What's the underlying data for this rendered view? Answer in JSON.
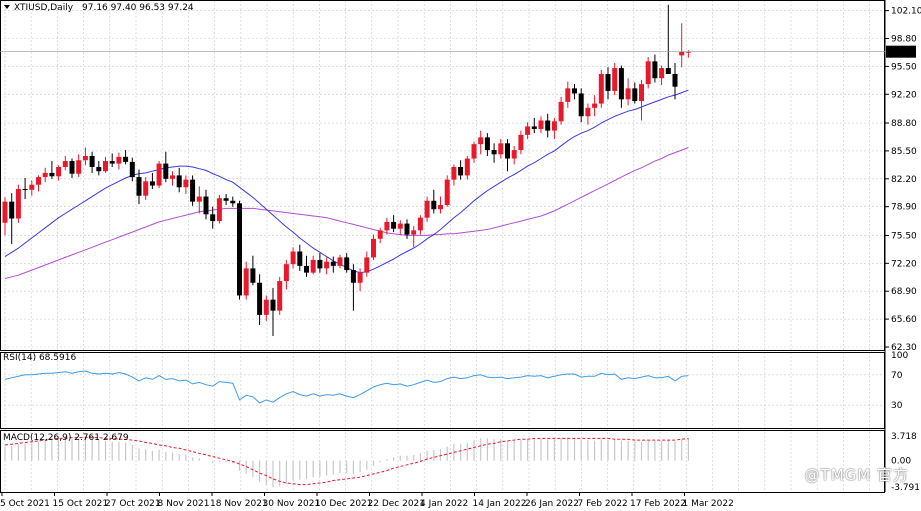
{
  "header": {
    "symbol_caption": "XTIUSD,Daily",
    "ohlc_caption": "97.16 97.40 96.53 97.24"
  },
  "panels": {
    "rsi_caption": "RSI(14) 68.5916",
    "macd_caption": "MACD(12,26,9) 2.761 2.679"
  },
  "current_price_tag": "97.24",
  "watermark": "@TMGM 官方",
  "colors": {
    "bull": "#e8192c",
    "bear": "#000000",
    "ma_fast": "#3a3adf",
    "ma_slow": "#b24fd1",
    "rsi_line": "#3f9be8",
    "macd_hist": "#c8c8c8",
    "macd_signal": "#e8192c",
    "grid": "#c9c9c9"
  },
  "chart_data": [
    {
      "type": "candlestick",
      "panel": "price",
      "ylim": [
        62.3,
        103.0
      ],
      "y_ticks": [
        "102.10",
        "98.80",
        "95.50",
        "92.20",
        "88.80",
        "85.50",
        "82.20",
        "78.90",
        "75.50",
        "72.20",
        "68.90",
        "65.60",
        "62.30"
      ],
      "x_ticks": [
        "5 Oct 2021",
        "15 Oct 2021",
        "27 Oct 2021",
        "8 Nov 2021",
        "18 Nov 2021",
        "30 Nov 2021",
        "10 Dec 2021",
        "22 Dec 2021",
        "4 Jan 2022",
        "14 Jan 2022",
        "26 Jan 2022",
        "7 Feb 2022",
        "17 Feb 2022",
        "1 Mar 2022"
      ],
      "candles": [
        {
          "o": 77.0,
          "h": 80.0,
          "l": 75.5,
          "c": 79.5
        },
        {
          "o": 79.5,
          "h": 80.5,
          "l": 74.5,
          "c": 77.5
        },
        {
          "o": 77.5,
          "h": 81.5,
          "l": 77.0,
          "c": 81.0
        },
        {
          "o": 81.0,
          "h": 82.3,
          "l": 79.8,
          "c": 80.9
        },
        {
          "o": 80.9,
          "h": 82.0,
          "l": 80.2,
          "c": 81.5
        },
        {
          "o": 81.5,
          "h": 82.6,
          "l": 80.7,
          "c": 82.4
        },
        {
          "o": 82.4,
          "h": 83.5,
          "l": 81.8,
          "c": 82.9
        },
        {
          "o": 82.9,
          "h": 84.3,
          "l": 82.2,
          "c": 82.5
        },
        {
          "o": 82.5,
          "h": 83.8,
          "l": 82.0,
          "c": 83.6
        },
        {
          "o": 83.6,
          "h": 84.9,
          "l": 83.2,
          "c": 84.3
        },
        {
          "o": 84.3,
          "h": 84.6,
          "l": 82.3,
          "c": 82.8
        },
        {
          "o": 82.8,
          "h": 85.1,
          "l": 82.4,
          "c": 84.4
        },
        {
          "o": 84.4,
          "h": 85.9,
          "l": 83.8,
          "c": 84.9
        },
        {
          "o": 84.9,
          "h": 85.4,
          "l": 82.9,
          "c": 83.6
        },
        {
          "o": 83.6,
          "h": 84.3,
          "l": 82.6,
          "c": 83.1
        },
        {
          "o": 83.1,
          "h": 84.8,
          "l": 82.9,
          "c": 84.3
        },
        {
          "o": 84.3,
          "h": 85.2,
          "l": 83.6,
          "c": 84.0
        },
        {
          "o": 84.0,
          "h": 85.3,
          "l": 83.3,
          "c": 84.8
        },
        {
          "o": 84.8,
          "h": 85.6,
          "l": 83.9,
          "c": 84.2
        },
        {
          "o": 84.2,
          "h": 84.7,
          "l": 81.9,
          "c": 82.4
        },
        {
          "o": 82.4,
          "h": 83.3,
          "l": 79.2,
          "c": 80.2
        },
        {
          "o": 80.2,
          "h": 82.4,
          "l": 79.7,
          "c": 81.9
        },
        {
          "o": 81.9,
          "h": 82.9,
          "l": 81.0,
          "c": 81.4
        },
        {
          "o": 81.4,
          "h": 84.3,
          "l": 81.1,
          "c": 84.0
        },
        {
          "o": 84.0,
          "h": 85.4,
          "l": 81.8,
          "c": 82.2
        },
        {
          "o": 82.2,
          "h": 83.1,
          "l": 81.4,
          "c": 82.6
        },
        {
          "o": 82.6,
          "h": 83.5,
          "l": 80.6,
          "c": 81.2
        },
        {
          "o": 81.2,
          "h": 82.6,
          "l": 80.4,
          "c": 82.1
        },
        {
          "o": 82.1,
          "h": 82.6,
          "l": 79.0,
          "c": 79.5
        },
        {
          "o": 79.5,
          "h": 81.3,
          "l": 78.1,
          "c": 80.1
        },
        {
          "o": 80.1,
          "h": 80.9,
          "l": 77.4,
          "c": 78.0
        },
        {
          "o": 78.0,
          "h": 78.9,
          "l": 76.3,
          "c": 77.2
        },
        {
          "o": 77.2,
          "h": 80.3,
          "l": 76.9,
          "c": 79.9
        },
        {
          "o": 79.9,
          "h": 80.4,
          "l": 79.1,
          "c": 79.6
        },
        {
          "o": 79.6,
          "h": 80.1,
          "l": 78.9,
          "c": 79.3
        },
        {
          "o": 79.3,
          "h": 79.6,
          "l": 67.9,
          "c": 68.4
        },
        {
          "o": 68.4,
          "h": 72.4,
          "l": 67.9,
          "c": 71.6
        },
        {
          "o": 71.6,
          "h": 73.1,
          "l": 69.6,
          "c": 69.9
        },
        {
          "o": 69.9,
          "h": 70.9,
          "l": 64.9,
          "c": 66.1
        },
        {
          "o": 66.1,
          "h": 68.4,
          "l": 65.4,
          "c": 67.9
        },
        {
          "o": 67.9,
          "h": 69.3,
          "l": 63.6,
          "c": 66.6
        },
        {
          "o": 66.6,
          "h": 70.6,
          "l": 66.1,
          "c": 70.1
        },
        {
          "o": 70.1,
          "h": 72.6,
          "l": 69.1,
          "c": 72.1
        },
        {
          "o": 72.1,
          "h": 74.1,
          "l": 71.6,
          "c": 73.6
        },
        {
          "o": 73.6,
          "h": 74.4,
          "l": 71.3,
          "c": 71.9
        },
        {
          "o": 71.9,
          "h": 73.1,
          "l": 70.6,
          "c": 71.1
        },
        {
          "o": 71.1,
          "h": 73.1,
          "l": 70.9,
          "c": 72.6
        },
        {
          "o": 72.6,
          "h": 73.4,
          "l": 71.1,
          "c": 71.6
        },
        {
          "o": 71.6,
          "h": 72.9,
          "l": 70.9,
          "c": 72.4
        },
        {
          "o": 72.4,
          "h": 73.0,
          "l": 71.1,
          "c": 71.9
        },
        {
          "o": 71.9,
          "h": 73.2,
          "l": 71.6,
          "c": 72.9
        },
        {
          "o": 72.9,
          "h": 73.4,
          "l": 71.1,
          "c": 71.4
        },
        {
          "o": 71.4,
          "h": 72.1,
          "l": 66.6,
          "c": 69.9
        },
        {
          "o": 69.9,
          "h": 71.6,
          "l": 68.9,
          "c": 71.1
        },
        {
          "o": 71.1,
          "h": 73.6,
          "l": 70.6,
          "c": 72.9
        },
        {
          "o": 72.9,
          "h": 75.6,
          "l": 72.6,
          "c": 75.1
        },
        {
          "o": 75.1,
          "h": 76.4,
          "l": 74.6,
          "c": 76.1
        },
        {
          "o": 76.1,
          "h": 77.6,
          "l": 75.6,
          "c": 77.1
        },
        {
          "o": 77.1,
          "h": 77.9,
          "l": 75.9,
          "c": 76.3
        },
        {
          "o": 76.3,
          "h": 77.3,
          "l": 75.6,
          "c": 76.9
        },
        {
          "o": 76.9,
          "h": 77.4,
          "l": 75.1,
          "c": 75.6
        },
        {
          "o": 75.6,
          "h": 76.6,
          "l": 74.1,
          "c": 76.1
        },
        {
          "o": 76.1,
          "h": 77.9,
          "l": 75.6,
          "c": 77.6
        },
        {
          "o": 77.6,
          "h": 80.1,
          "l": 77.1,
          "c": 79.6
        },
        {
          "o": 79.6,
          "h": 80.9,
          "l": 78.1,
          "c": 78.6
        },
        {
          "o": 78.6,
          "h": 80.1,
          "l": 78.1,
          "c": 79.1
        },
        {
          "o": 79.1,
          "h": 82.6,
          "l": 78.9,
          "c": 82.1
        },
        {
          "o": 82.1,
          "h": 83.9,
          "l": 81.4,
          "c": 83.6
        },
        {
          "o": 83.6,
          "h": 84.4,
          "l": 82.1,
          "c": 82.6
        },
        {
          "o": 82.6,
          "h": 84.9,
          "l": 82.1,
          "c": 84.6
        },
        {
          "o": 84.6,
          "h": 86.6,
          "l": 84.1,
          "c": 86.3
        },
        {
          "o": 86.3,
          "h": 87.9,
          "l": 85.1,
          "c": 87.1
        },
        {
          "o": 87.1,
          "h": 87.6,
          "l": 84.9,
          "c": 85.6
        },
        {
          "o": 85.6,
          "h": 86.4,
          "l": 84.1,
          "c": 85.1
        },
        {
          "o": 85.1,
          "h": 86.9,
          "l": 84.6,
          "c": 86.4
        },
        {
          "o": 86.4,
          "h": 86.9,
          "l": 83.1,
          "c": 84.6
        },
        {
          "o": 84.6,
          "h": 86.1,
          "l": 83.9,
          "c": 85.6
        },
        {
          "o": 85.6,
          "h": 87.9,
          "l": 85.1,
          "c": 87.4
        },
        {
          "o": 87.4,
          "h": 88.9,
          "l": 86.9,
          "c": 88.4
        },
        {
          "o": 88.4,
          "h": 89.4,
          "l": 87.6,
          "c": 88.1
        },
        {
          "o": 88.1,
          "h": 89.6,
          "l": 87.6,
          "c": 89.1
        },
        {
          "o": 89.1,
          "h": 89.9,
          "l": 87.1,
          "c": 87.9
        },
        {
          "o": 87.9,
          "h": 89.4,
          "l": 86.9,
          "c": 89.0
        },
        {
          "o": 89.0,
          "h": 91.9,
          "l": 88.6,
          "c": 91.3
        },
        {
          "o": 91.3,
          "h": 93.7,
          "l": 90.6,
          "c": 92.9
        },
        {
          "o": 92.9,
          "h": 93.4,
          "l": 91.6,
          "c": 92.3
        },
        {
          "o": 92.3,
          "h": 92.9,
          "l": 88.9,
          "c": 89.6
        },
        {
          "o": 89.6,
          "h": 91.1,
          "l": 88.6,
          "c": 90.6
        },
        {
          "o": 90.6,
          "h": 92.1,
          "l": 89.6,
          "c": 91.1
        },
        {
          "o": 91.1,
          "h": 95.1,
          "l": 90.6,
          "c": 94.6
        },
        {
          "o": 94.6,
          "h": 95.4,
          "l": 91.6,
          "c": 92.6
        },
        {
          "o": 92.6,
          "h": 95.9,
          "l": 92.1,
          "c": 95.3
        },
        {
          "o": 95.3,
          "h": 95.6,
          "l": 90.6,
          "c": 91.6
        },
        {
          "o": 91.6,
          "h": 94.1,
          "l": 90.9,
          "c": 92.9
        },
        {
          "o": 92.9,
          "h": 93.6,
          "l": 91.1,
          "c": 91.4
        },
        {
          "o": 91.4,
          "h": 93.9,
          "l": 89.1,
          "c": 93.4
        },
        {
          "o": 93.4,
          "h": 96.6,
          "l": 92.9,
          "c": 96.1
        },
        {
          "o": 96.1,
          "h": 96.9,
          "l": 93.6,
          "c": 94.1
        },
        {
          "o": 94.1,
          "h": 95.6,
          "l": 93.3,
          "c": 95.3
        },
        {
          "o": 95.3,
          "h": 102.8,
          "l": 94.6,
          "c": 94.6
        },
        {
          "o": 94.6,
          "h": 95.9,
          "l": 91.6,
          "c": 93.1
        },
        {
          "o": 96.8,
          "h": 100.6,
          "l": 95.4,
          "c": 97.2
        },
        {
          "o": 97.16,
          "h": 97.4,
          "l": 96.53,
          "c": 97.24
        }
      ],
      "ma_fast": [
        73.0,
        73.5,
        74.0,
        74.6,
        75.2,
        75.8,
        76.4,
        77.0,
        77.6,
        78.1,
        78.6,
        79.1,
        79.6,
        80.1,
        80.6,
        81.1,
        81.5,
        81.9,
        82.3,
        82.6,
        82.8,
        82.9,
        83.1,
        83.3,
        83.5,
        83.6,
        83.7,
        83.7,
        83.6,
        83.4,
        83.2,
        82.8,
        82.5,
        82.1,
        81.8,
        81.2,
        80.6,
        80.0,
        79.3,
        78.6,
        77.9,
        77.2,
        76.5,
        75.9,
        75.2,
        74.6,
        74.0,
        73.5,
        73.0,
        72.5,
        72.1,
        71.7,
        71.3,
        71.1,
        71.2,
        71.5,
        71.9,
        72.3,
        72.7,
        73.2,
        73.6,
        74.0,
        74.5,
        75.1,
        75.6,
        76.2,
        76.9,
        77.6,
        78.2,
        78.9,
        79.6,
        80.2,
        80.8,
        81.3,
        81.8,
        82.3,
        82.7,
        83.2,
        83.7,
        84.1,
        84.6,
        85.1,
        85.5,
        86.1,
        86.7,
        87.2,
        87.6,
        87.9,
        88.3,
        88.8,
        89.2,
        89.6,
        89.9,
        90.2,
        90.4,
        90.7,
        91.0,
        91.3,
        91.6,
        91.9,
        92.1,
        92.4,
        92.7
      ],
      "ma_slow": [
        70.4,
        70.6,
        70.8,
        71.1,
        71.4,
        71.7,
        72.0,
        72.3,
        72.6,
        72.9,
        73.2,
        73.5,
        73.8,
        74.1,
        74.4,
        74.7,
        75.0,
        75.3,
        75.6,
        75.9,
        76.2,
        76.5,
        76.8,
        77.1,
        77.3,
        77.5,
        77.7,
        77.9,
        78.1,
        78.3,
        78.4,
        78.5,
        78.6,
        78.7,
        78.7,
        78.7,
        78.7,
        78.7,
        78.6,
        78.5,
        78.4,
        78.3,
        78.2,
        78.1,
        78.0,
        77.9,
        77.8,
        77.7,
        77.6,
        77.4,
        77.2,
        77.0,
        76.8,
        76.6,
        76.4,
        76.2,
        76.0,
        75.8,
        75.7,
        75.6,
        75.5,
        75.5,
        75.5,
        75.5,
        75.6,
        75.6,
        75.7,
        75.7,
        75.8,
        75.9,
        76.0,
        76.1,
        76.2,
        76.4,
        76.6,
        76.8,
        77.0,
        77.2,
        77.4,
        77.6,
        77.8,
        78.1,
        78.4,
        78.8,
        79.2,
        79.6,
        80.0,
        80.4,
        80.8,
        81.2,
        81.6,
        82.0,
        82.4,
        82.8,
        83.2,
        83.5,
        83.9,
        84.3,
        84.6,
        85.0,
        85.3,
        85.6,
        85.9
      ]
    },
    {
      "type": "line",
      "panel": "rsi",
      "ylim": [
        0,
        100
      ],
      "y_ticks": [
        "100",
        "70",
        "30",
        "0"
      ],
      "values": [
        64,
        66,
        68,
        70,
        70,
        71,
        72,
        72,
        73,
        74,
        72,
        74,
        75,
        72,
        71,
        72,
        71,
        73,
        71,
        67,
        62,
        66,
        64,
        69,
        64,
        65,
        62,
        63,
        58,
        60,
        57,
        55,
        61,
        60,
        59,
        37,
        43,
        41,
        33,
        37,
        34,
        40,
        45,
        48,
        44,
        42,
        45,
        42,
        44,
        43,
        45,
        42,
        40,
        44,
        49,
        54,
        57,
        59,
        57,
        58,
        55,
        57,
        60,
        63,
        60,
        61,
        65,
        67,
        65,
        66,
        69,
        70,
        67,
        66,
        67,
        65,
        66,
        67,
        69,
        68,
        69,
        66,
        68,
        70,
        71,
        71,
        67,
        68,
        68,
        72,
        70,
        71,
        64,
        66,
        65,
        67,
        69,
        66,
        66,
        68,
        62,
        68,
        69
      ]
    },
    {
      "type": "bar",
      "panel": "macd",
      "ylim": [
        -3.791,
        3.718
      ],
      "y_ticks": [
        "3.718",
        "0.00",
        "-3.791"
      ],
      "histogram": [
        1.7,
        1.8,
        2.0,
        2.1,
        2.2,
        2.3,
        2.4,
        2.5,
        2.6,
        2.7,
        2.6,
        2.7,
        2.8,
        2.6,
        2.5,
        2.4,
        2.3,
        2.3,
        2.2,
        1.9,
        1.5,
        1.4,
        1.2,
        1.3,
        1.1,
        1.0,
        0.8,
        0.7,
        0.4,
        0.3,
        0.0,
        -0.3,
        -0.2,
        -0.2,
        -0.3,
        -1.2,
        -1.6,
        -2.0,
        -2.6,
        -2.9,
        -3.2,
        -3.1,
        -2.8,
        -2.4,
        -2.3,
        -2.2,
        -2.0,
        -1.9,
        -1.8,
        -1.7,
        -1.5,
        -1.5,
        -1.6,
        -1.4,
        -1.1,
        -0.6,
        -0.2,
        0.2,
        0.4,
        0.6,
        0.6,
        0.7,
        0.9,
        1.2,
        1.3,
        1.4,
        1.7,
        2.0,
        2.0,
        2.2,
        2.5,
        2.7,
        2.7,
        2.6,
        2.6,
        2.4,
        2.4,
        2.5,
        2.6,
        2.7,
        2.7,
        2.6,
        2.6,
        2.7,
        2.8,
        2.8,
        2.6,
        2.5,
        2.4,
        2.6,
        2.5,
        2.6,
        2.4,
        2.4,
        2.3,
        2.3,
        2.4,
        2.4,
        2.4,
        2.5,
        2.3,
        2.6,
        2.761
      ],
      "signal": [
        1.9,
        2.0,
        2.1,
        2.2,
        2.3,
        2.4,
        2.5,
        2.6,
        2.7,
        2.7,
        2.8,
        2.8,
        2.8,
        2.8,
        2.8,
        2.7,
        2.7,
        2.6,
        2.6,
        2.5,
        2.4,
        2.2,
        2.1,
        1.9,
        1.8,
        1.6,
        1.5,
        1.3,
        1.1,
        0.9,
        0.7,
        0.5,
        0.3,
        0.1,
        -0.1,
        -0.4,
        -0.7,
        -1.1,
        -1.5,
        -1.8,
        -2.2,
        -2.5,
        -2.7,
        -2.8,
        -2.9,
        -2.9,
        -2.8,
        -2.7,
        -2.6,
        -2.4,
        -2.3,
        -2.2,
        -2.1,
        -2.0,
        -1.8,
        -1.6,
        -1.4,
        -1.2,
        -0.9,
        -0.7,
        -0.5,
        -0.3,
        -0.1,
        0.2,
        0.4,
        0.6,
        0.8,
        1.0,
        1.2,
        1.4,
        1.6,
        1.8,
        2.0,
        2.1,
        2.3,
        2.4,
        2.5,
        2.6,
        2.6,
        2.7,
        2.7,
        2.7,
        2.7,
        2.7,
        2.7,
        2.7,
        2.7,
        2.7,
        2.7,
        2.7,
        2.7,
        2.6,
        2.6,
        2.6,
        2.5,
        2.5,
        2.5,
        2.5,
        2.5,
        2.5,
        2.5,
        2.6,
        2.679
      ]
    }
  ]
}
